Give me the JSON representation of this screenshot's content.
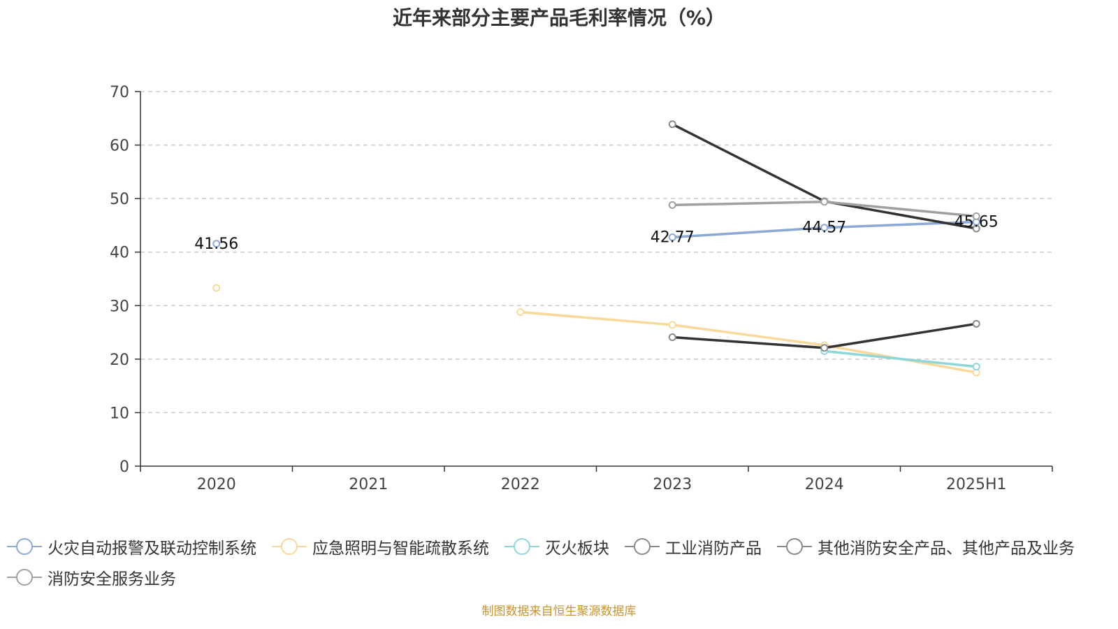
{
  "chart_data": {
    "type": "line",
    "title": "近年来部分主要产品毛利率情况（%）",
    "categories": [
      "2020",
      "2021",
      "2022",
      "2023",
      "2024",
      "2025H1"
    ],
    "ylim": [
      0,
      70
    ],
    "yticks": [
      0,
      10,
      20,
      30,
      40,
      50,
      60,
      70
    ],
    "grid": true,
    "legend_position": "bottom",
    "series": [
      {
        "name": "火灾自动报警及联动控制系统",
        "color": "#8ba8d6",
        "values": [
          41.56,
          null,
          null,
          42.77,
          44.57,
          45.65
        ],
        "labels": [
          "41.56",
          null,
          null,
          "42.77",
          "44.57",
          "45.65"
        ]
      },
      {
        "name": "应急照明与智能疏散系统",
        "color": "#f9d89b",
        "values": [
          33.3,
          null,
          28.8,
          26.4,
          22.6,
          17.5
        ]
      },
      {
        "name": "灭火板块",
        "color": "#8fd6d9",
        "values": [
          null,
          null,
          null,
          null,
          21.5,
          18.6
        ]
      },
      {
        "name": "工业消防产品",
        "color": "#333333",
        "values": [
          null,
          null,
          null,
          24.1,
          22.1,
          26.6
        ]
      },
      {
        "name": "其他消防安全产品、其他产品及业务",
        "color": "#333333",
        "values": [
          null,
          null,
          null,
          63.9,
          49.5,
          44.4
        ]
      },
      {
        "name": "消防安全服务业务",
        "color": "#a0a0a0",
        "values": [
          null,
          null,
          null,
          48.8,
          49.4,
          46.7
        ]
      }
    ],
    "source": "制图数据来自恒生聚源数据库"
  }
}
